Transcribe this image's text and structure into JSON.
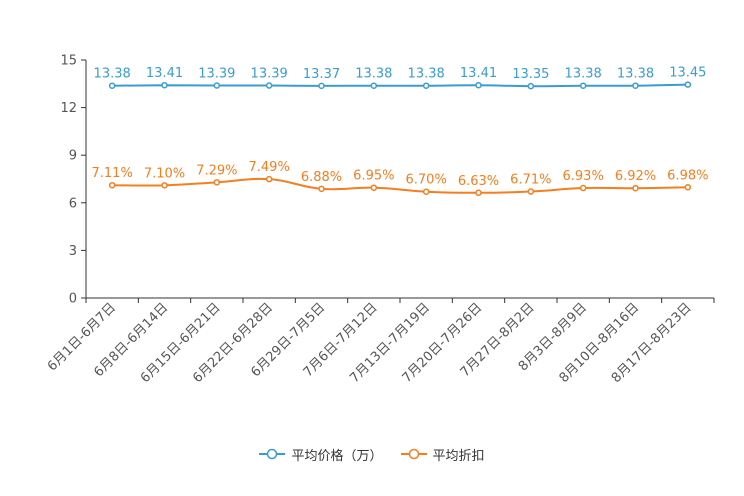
{
  "chart_data": {
    "type": "line",
    "categories": [
      "6月1日-6月7日",
      "6月8日-6月14日",
      "6月15日-6月21日",
      "6月22日-6月28日",
      "6月29日-7月5日",
      "7月6日-7月12日",
      "7月13日-7月19日",
      "7月20日-7月26日",
      "7月27日-8月2日",
      "8月3日-8月9日",
      "8月10日-8月16日",
      "8月17日-8月23日"
    ],
    "series": [
      {
        "name": "平均价格（万）",
        "color": "#3a9dd1",
        "values": [
          13.38,
          13.41,
          13.39,
          13.39,
          13.37,
          13.38,
          13.38,
          13.41,
          13.35,
          13.38,
          13.38,
          13.45
        ],
        "labels": [
          "13.38",
          "13.41",
          "13.39",
          "13.39",
          "13.37",
          "13.38",
          "13.38",
          "13.41",
          "13.35",
          "13.38",
          "13.38",
          "13.45"
        ]
      },
      {
        "name": "平均折扣",
        "color": "#f57e1f",
        "values": [
          7.11,
          7.1,
          7.29,
          7.49,
          6.88,
          6.95,
          6.7,
          6.63,
          6.71,
          6.93,
          6.92,
          6.98
        ],
        "labels": [
          "7.11%",
          "7.10%",
          "7.29%",
          "7.49%",
          "6.88%",
          "6.95%",
          "6.70%",
          "6.63%",
          "6.71%",
          "6.93%",
          "6.92%",
          "6.98%"
        ]
      }
    ],
    "yticks": [
      0,
      3,
      6,
      9,
      12,
      15
    ],
    "ylim": [
      0,
      15
    ],
    "legend_position": "bottom"
  }
}
